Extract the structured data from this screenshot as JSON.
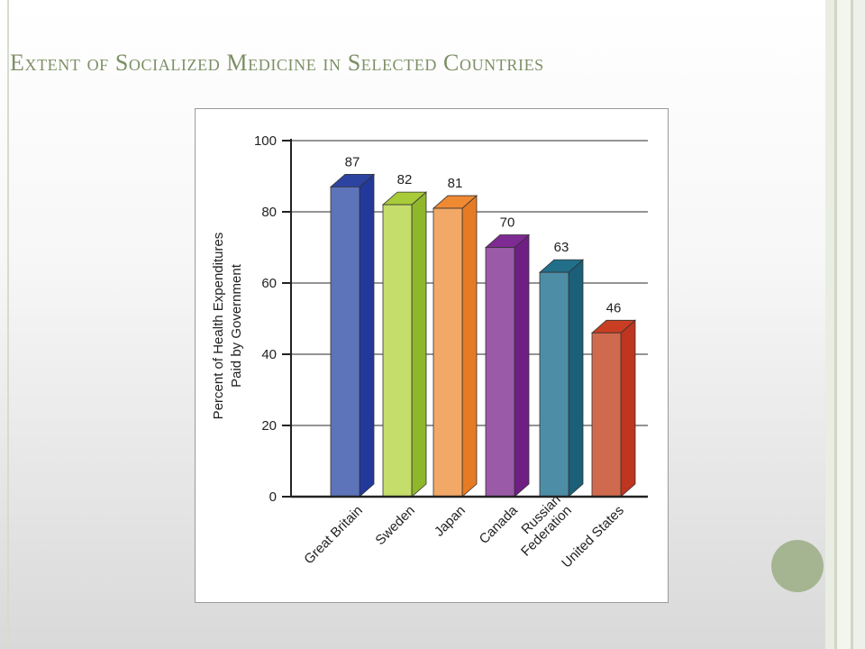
{
  "slide": {
    "title": "Extent of Socialized Medicine in Selected Countries"
  },
  "chart_data": {
    "type": "bar",
    "title": "",
    "xlabel": "",
    "ylabel_lines": [
      "Percent of Health Expenditures",
      "Paid by Government"
    ],
    "categories": [
      [
        "Great Britain"
      ],
      [
        "Sweden"
      ],
      [
        "Japan"
      ],
      [
        "Canada"
      ],
      [
        "Russian",
        "Federation"
      ],
      [
        "United States"
      ]
    ],
    "values": [
      87,
      82,
      81,
      70,
      63,
      46
    ],
    "ylim": [
      0,
      100
    ],
    "yticks": [
      0,
      20,
      40,
      60,
      80,
      100
    ],
    "grid": true,
    "bar_style": "3d",
    "colors": [
      {
        "front": "#5d74bb",
        "side": "#22389a",
        "top": "#2d43a2"
      },
      {
        "front": "#c4dd6b",
        "side": "#8eb72c",
        "top": "#a8cb3a"
      },
      {
        "front": "#f2a866",
        "side": "#e57b24",
        "top": "#ef8a33"
      },
      {
        "front": "#9a5aa8",
        "side": "#6f1f84",
        "top": "#7e2a93"
      },
      {
        "front": "#4e8da6",
        "side": "#1b5f78",
        "top": "#226f8a"
      },
      {
        "front": "#d06a4f",
        "side": "#c0351f",
        "top": "#c93e22"
      }
    ]
  }
}
